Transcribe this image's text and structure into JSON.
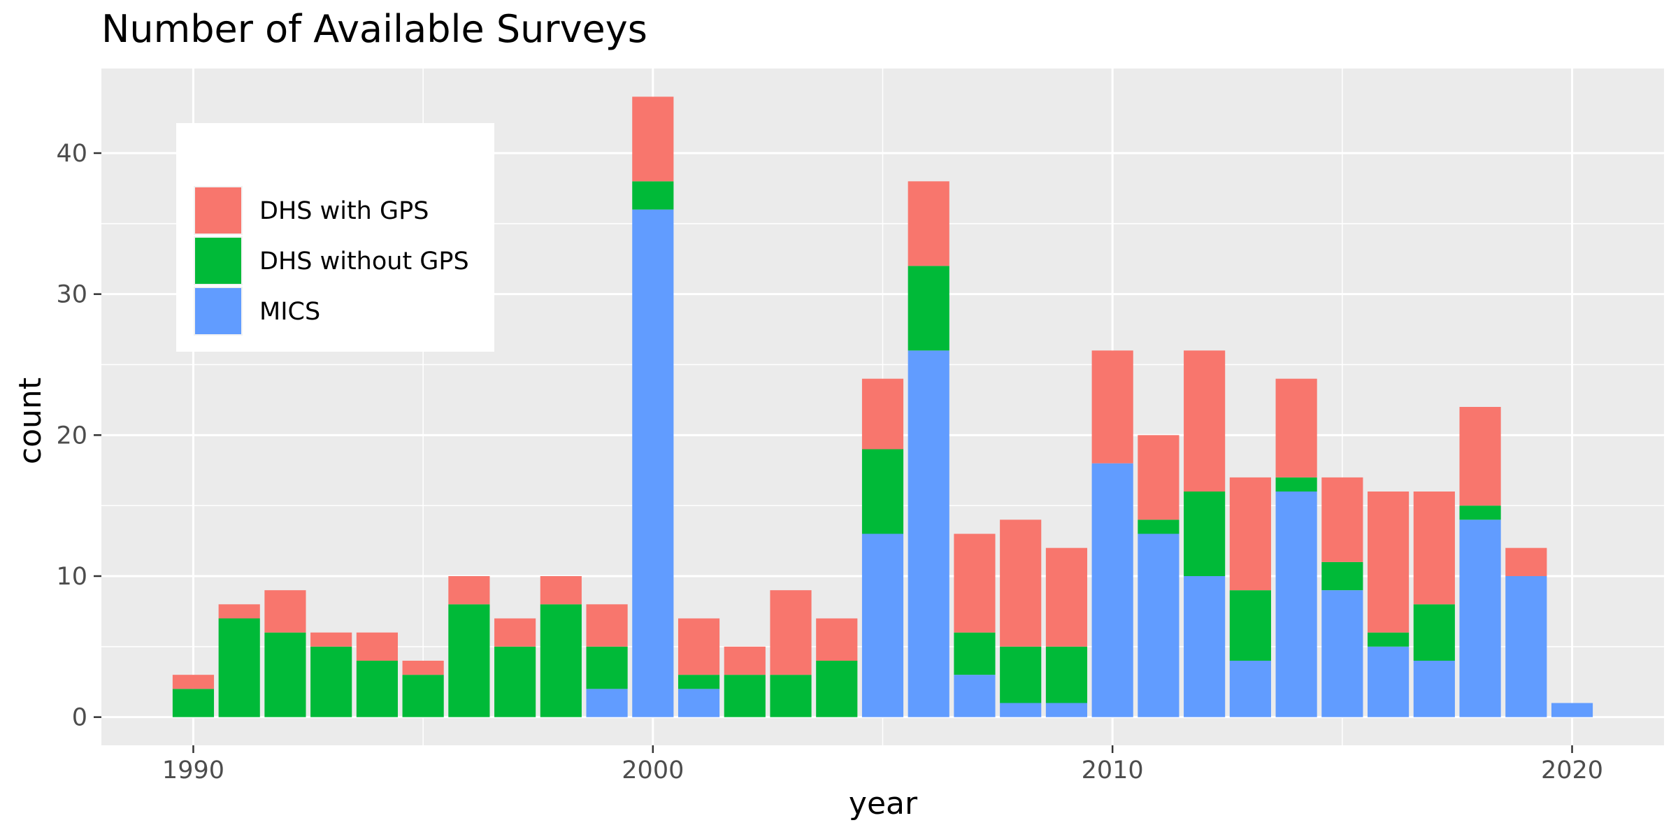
{
  "chart_data": {
    "type": "bar",
    "stacked": true,
    "title": "Number of Available Surveys",
    "xlabel": "year",
    "ylabel": "count",
    "xlim": [
      1988,
      2022
    ],
    "ylim": [
      -2,
      46
    ],
    "x_ticks": [
      1990,
      2000,
      2010,
      2020
    ],
    "y_ticks": [
      0,
      10,
      20,
      30,
      40
    ],
    "grid": true,
    "legend_position": "top-left",
    "x": [
      1990,
      1991,
      1992,
      1993,
      1994,
      1995,
      1996,
      1997,
      1998,
      1999,
      2000,
      2001,
      2002,
      2003,
      2004,
      2005,
      2006,
      2007,
      2008,
      2009,
      2010,
      2011,
      2012,
      2013,
      2014,
      2015,
      2016,
      2017,
      2018,
      2019,
      2020
    ],
    "series": [
      {
        "name": "MICS",
        "color": "#619CFF",
        "values": [
          0,
          0,
          0,
          0,
          0,
          0,
          0,
          0,
          0,
          2,
          36,
          2,
          0,
          0,
          0,
          13,
          26,
          3,
          1,
          1,
          18,
          13,
          10,
          4,
          16,
          9,
          5,
          4,
          14,
          10,
          1
        ]
      },
      {
        "name": "DHS without GPS",
        "color": "#00BA38",
        "values": [
          2,
          7,
          6,
          5,
          4,
          3,
          8,
          5,
          8,
          3,
          2,
          1,
          3,
          3,
          4,
          6,
          6,
          3,
          4,
          4,
          0,
          1,
          6,
          5,
          1,
          2,
          1,
          4,
          1,
          0,
          0
        ]
      },
      {
        "name": "DHS with GPS",
        "color": "#F8766D",
        "values": [
          1,
          1,
          3,
          1,
          2,
          1,
          2,
          2,
          2,
          3,
          6,
          4,
          2,
          6,
          3,
          5,
          6,
          7,
          9,
          7,
          8,
          6,
          10,
          8,
          7,
          6,
          10,
          8,
          7,
          2,
          0
        ]
      }
    ],
    "legend_order": [
      "DHS with GPS",
      "DHS without GPS",
      "MICS"
    ]
  }
}
